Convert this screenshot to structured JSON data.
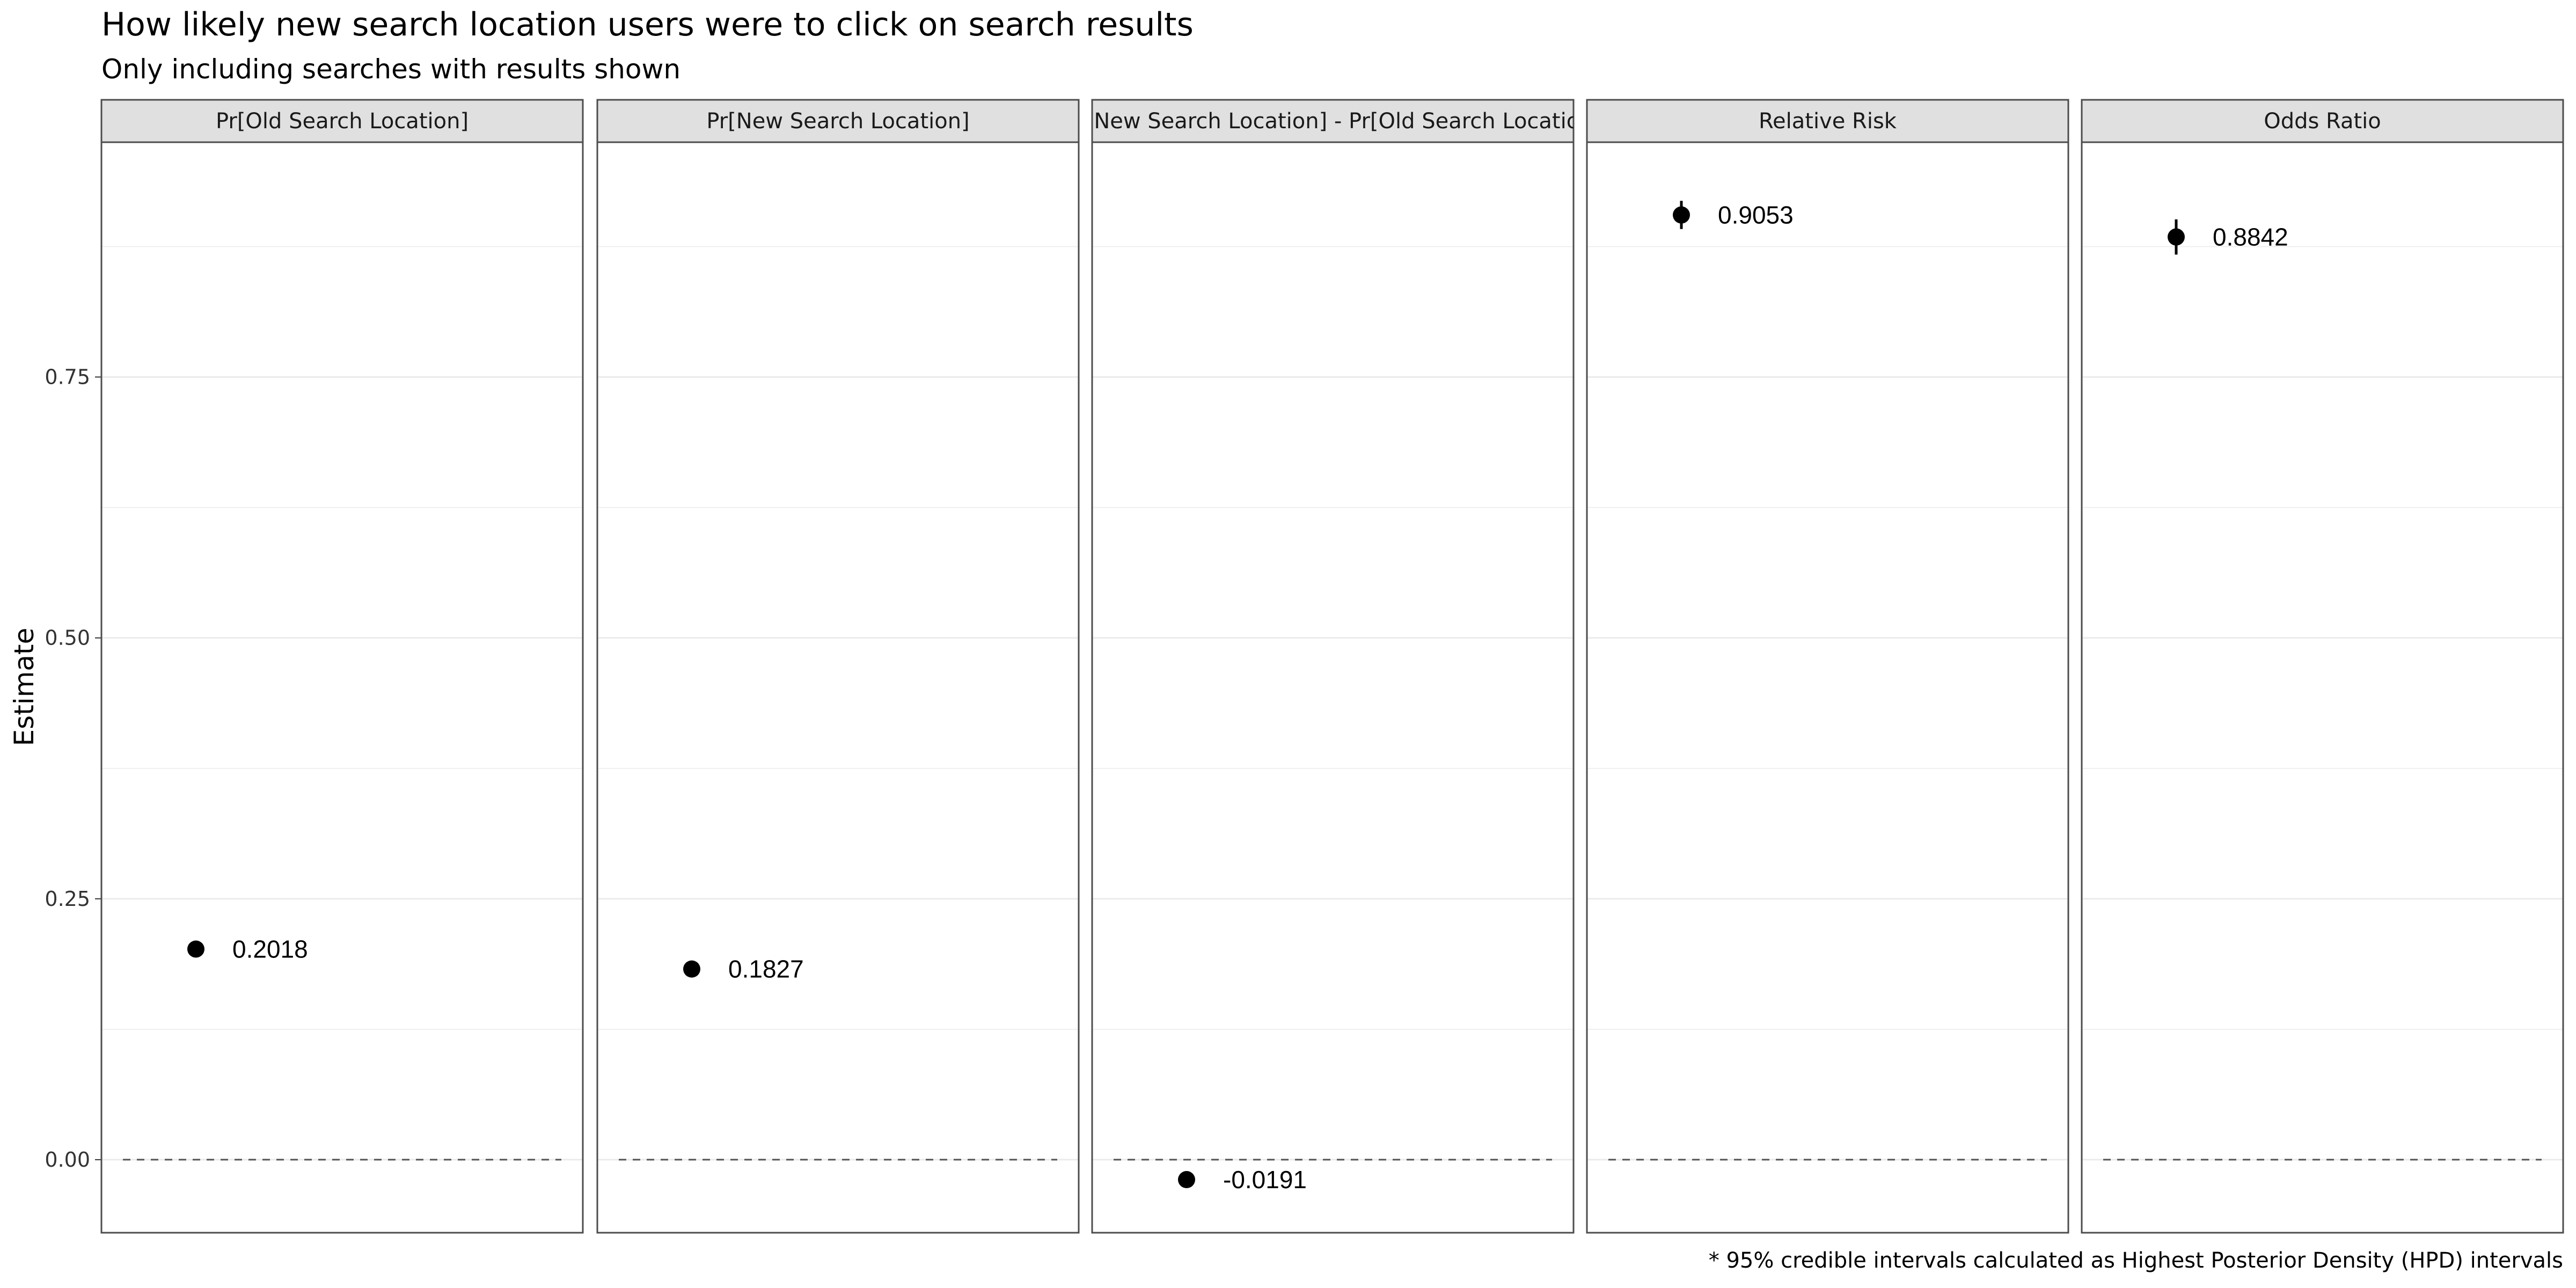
{
  "chart_data": {
    "type": "scatter",
    "title": "How likely new search location users were to click on search results",
    "subtitle": "Only including searches with results shown",
    "ylabel": "Estimate",
    "xlabel": "",
    "caption": "* 95% credible intervals calculated as Highest Posterior Density (HPD) intervals",
    "ylim": [
      -0.07,
      0.975
    ],
    "yticks": [
      0.0,
      0.25,
      0.5,
      0.75
    ],
    "ytick_labels": [
      "0.00",
      "0.25",
      "0.50",
      "0.75"
    ],
    "reference_line": 0.0,
    "grid": true,
    "panels": [
      {
        "label": "Pr[Old Search Location]",
        "value": 0.2018,
        "value_label": "0.2018",
        "lower": 0.2018,
        "upper": 0.2018
      },
      {
        "label": "Pr[New Search Location]",
        "value": 0.1827,
        "value_label": "0.1827",
        "lower": 0.1827,
        "upper": 0.1827
      },
      {
        "label": "Pr[New Search Location] - Pr[Old Search Location]",
        "value": -0.0191,
        "value_label": "-0.0191",
        "lower": -0.0191,
        "upper": -0.0191
      },
      {
        "label": "Relative Risk",
        "value": 0.9053,
        "value_label": "0.9053",
        "lower": 0.8918,
        "upper": 0.9188
      },
      {
        "label": "Odds Ratio",
        "value": 0.8842,
        "value_label": "0.8842",
        "lower": 0.8673,
        "upper": 0.9011
      }
    ]
  },
  "colors": {
    "strip_fill": "#e0e0e0",
    "panel_border": "#4d4d4d",
    "grid": "#ebebeb",
    "point": "#000000",
    "reference_line": "#555555"
  }
}
